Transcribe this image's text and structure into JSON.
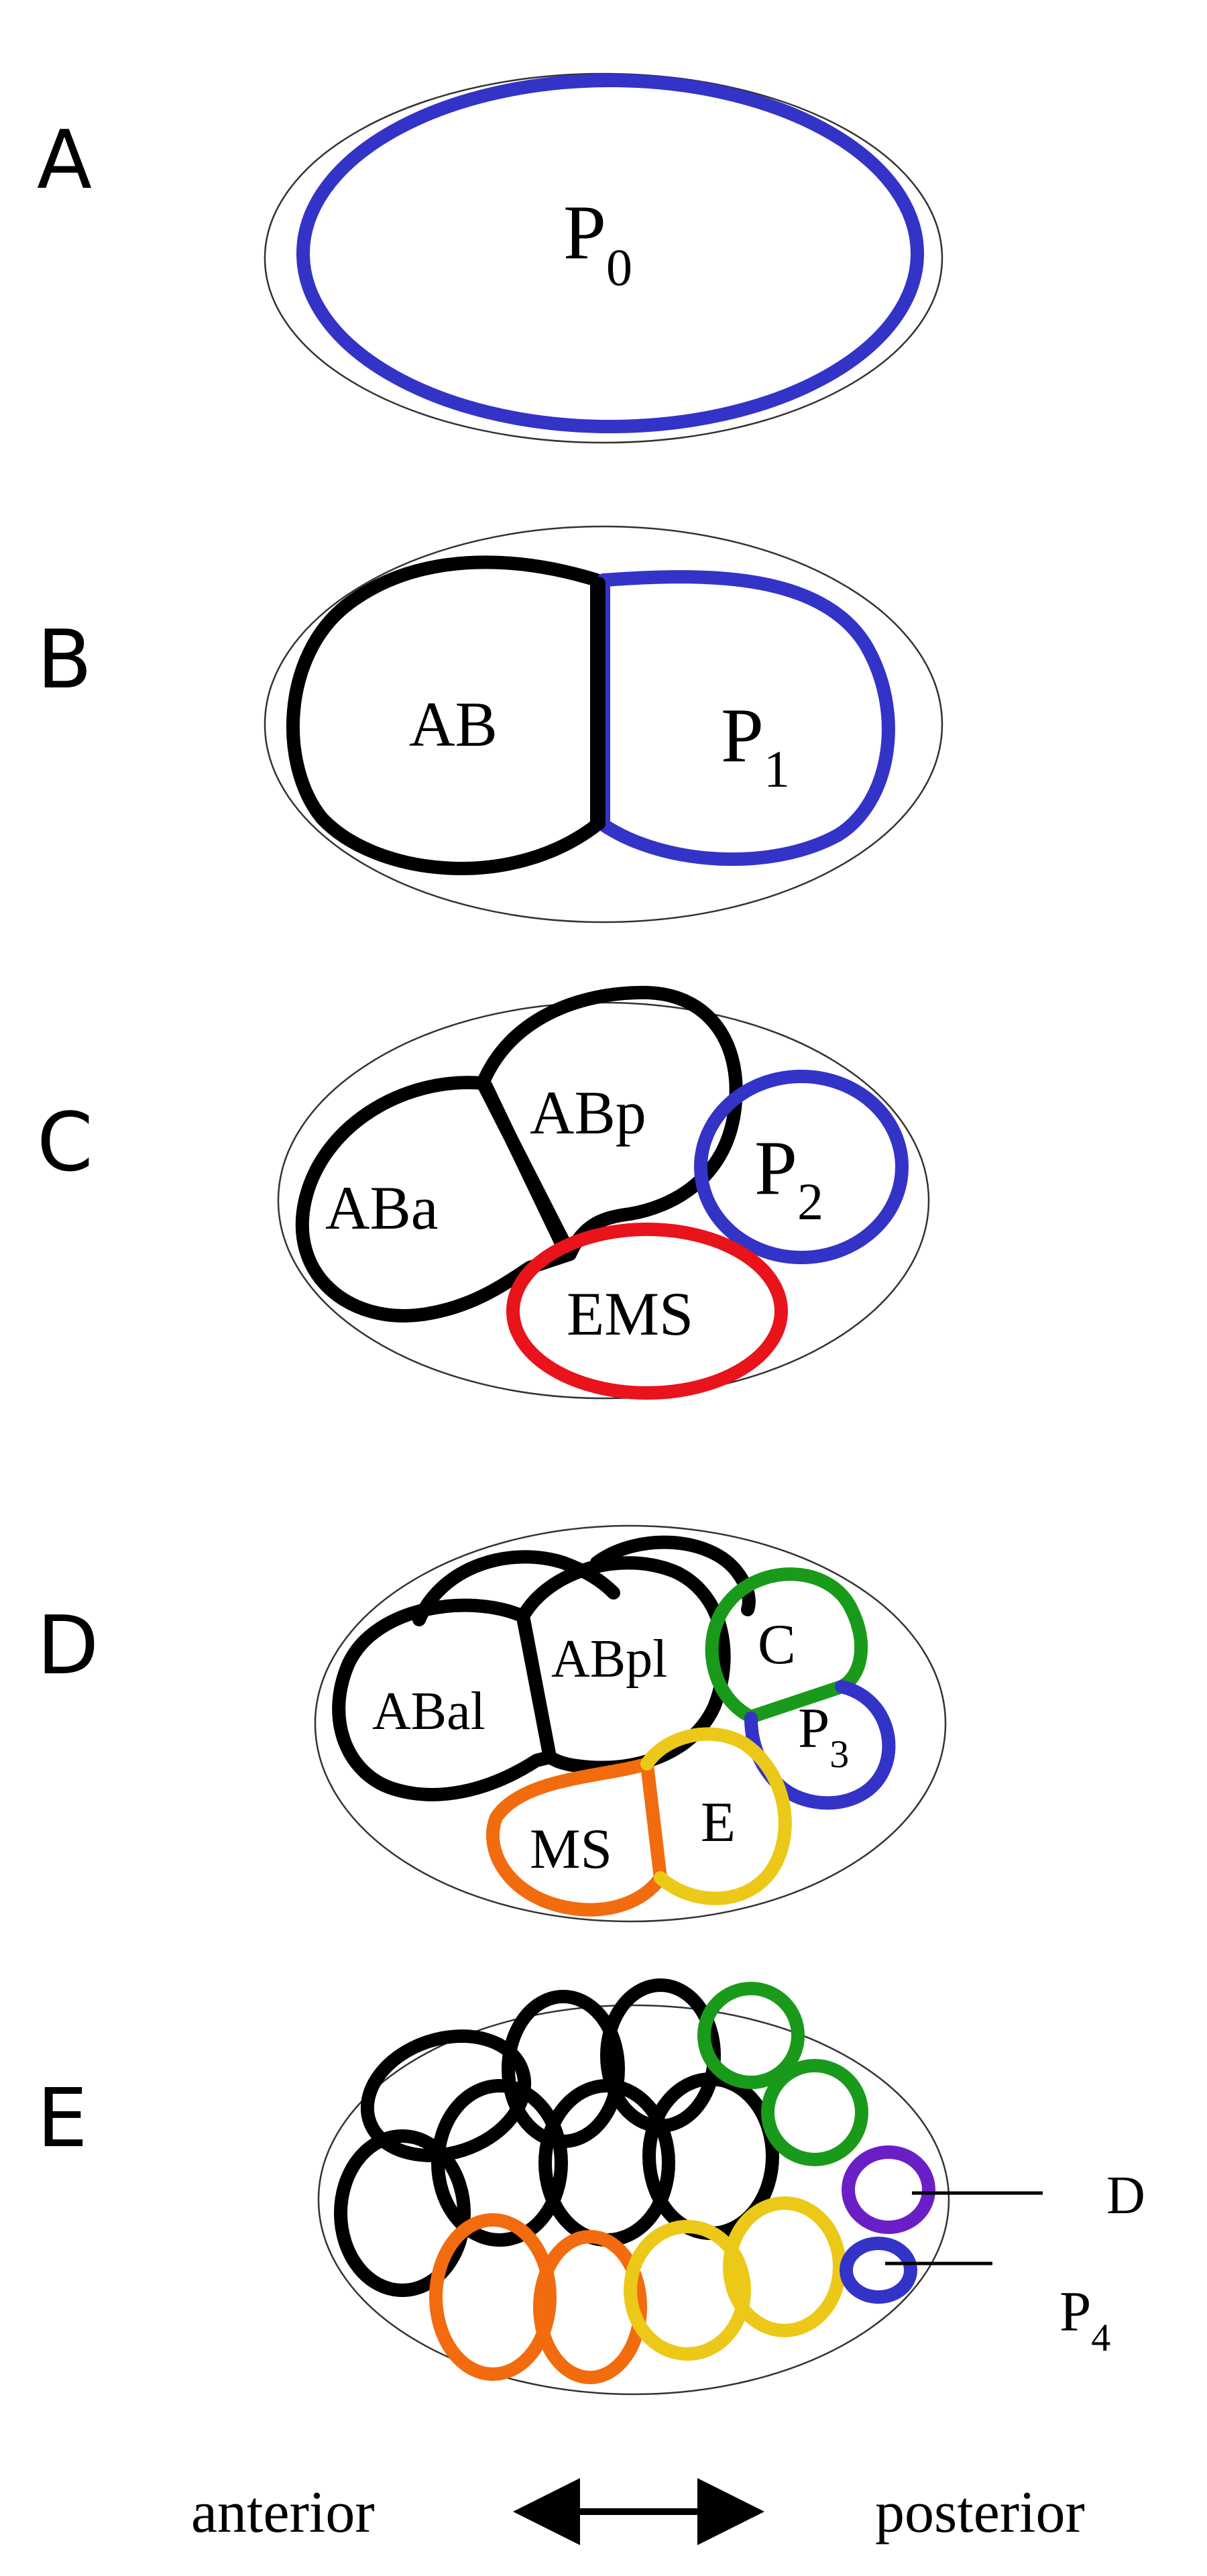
{
  "colors": {
    "AB": "#000000",
    "P_lineage": "#3333c8",
    "EMS": "#e8131b",
    "C": "#1a9a1a",
    "MS": "#f26b0f",
    "E": "#ecc918",
    "D": "#6a1fc6"
  },
  "panels": {
    "A": {
      "letter": "A",
      "cells": {
        "P0": {
          "base": "P",
          "sub": "0"
        }
      }
    },
    "B": {
      "letter": "B",
      "cells": {
        "AB": "AB",
        "P1": {
          "base": "P",
          "sub": "1"
        }
      }
    },
    "C": {
      "letter": "C",
      "cells": {
        "ABa": "ABa",
        "ABp": "ABp",
        "EMS": "EMS",
        "P2": {
          "base": "P",
          "sub": "2"
        }
      }
    },
    "D": {
      "letter": "D",
      "cells": {
        "ABal": "ABal",
        "ABpl": "ABpl",
        "C": "C",
        "P3": {
          "base": "P",
          "sub": "3"
        },
        "MS": "MS",
        "E": "E"
      }
    },
    "E": {
      "letter": "E",
      "callouts": {
        "D": "D",
        "P4": {
          "base": "P",
          "sub": "4"
        }
      }
    }
  },
  "axis": {
    "anterior": "anterior",
    "posterior": "posterior",
    "arrow_icon": "double-headed-arrow-icon"
  }
}
